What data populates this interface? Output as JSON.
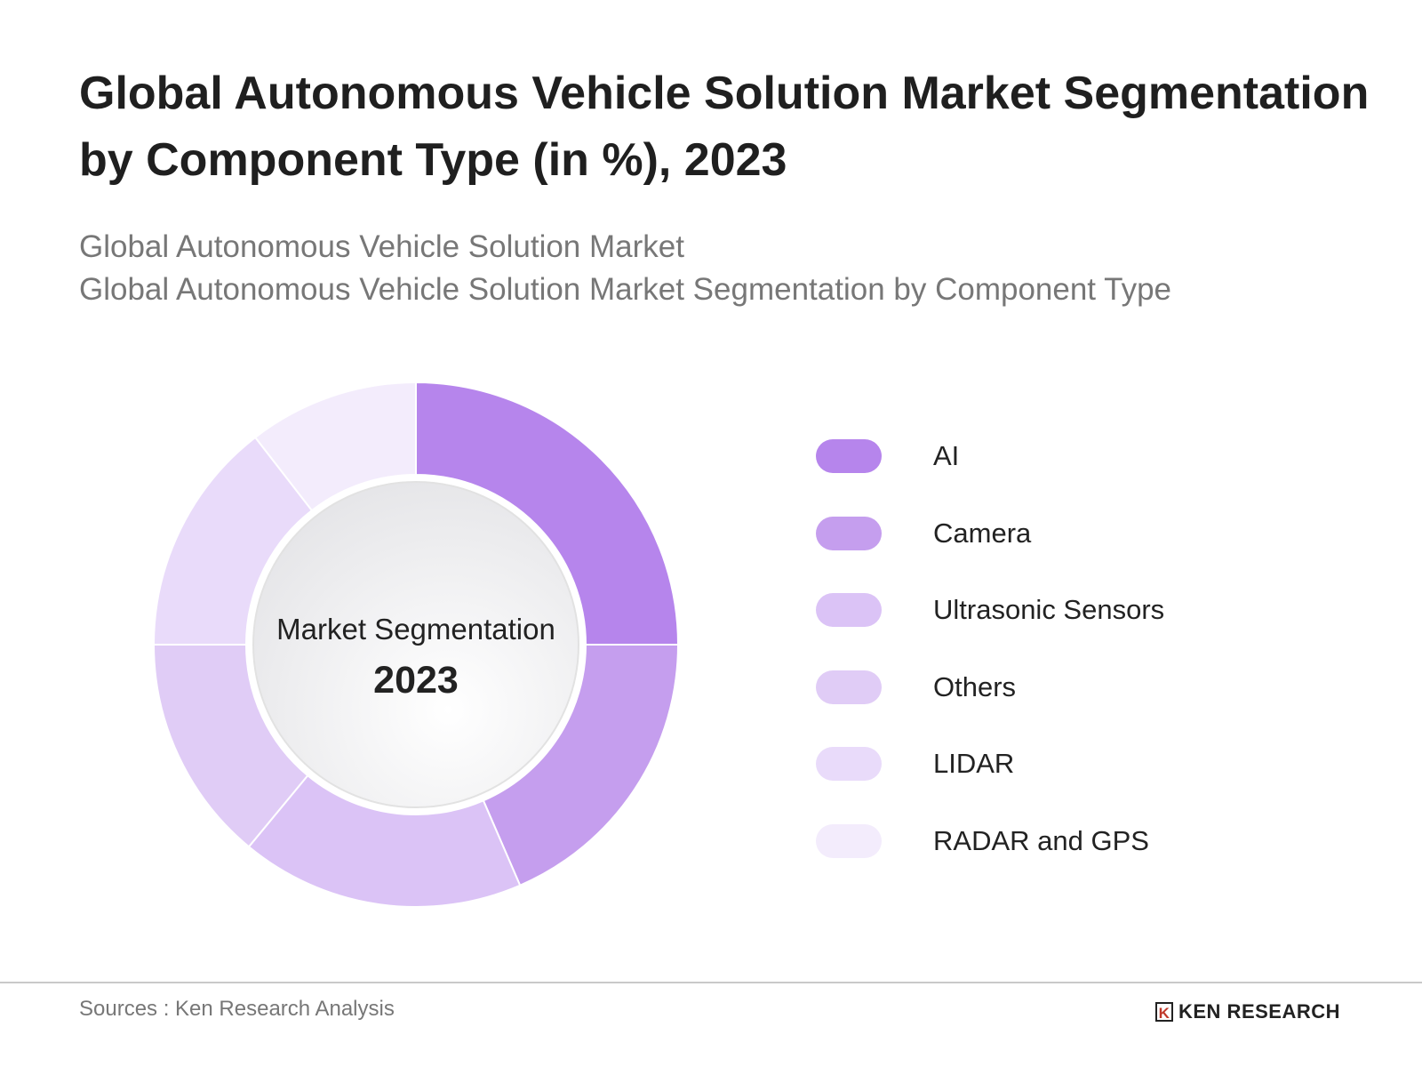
{
  "title": "Global Autonomous Vehicle Solution Market Segmentation by Component Type (in %), 2023",
  "subtitle_lines": [
    "Global Autonomous Vehicle Solution Market",
    "Global Autonomous Vehicle Solution Market Segmentation by Component Type"
  ],
  "center_label": "Market Segmentation",
  "center_year": "2023",
  "source": "Sources : Ken Research Analysis",
  "logo_text": "KEN RESEARCH",
  "chart_data": {
    "type": "pie",
    "style": "donut",
    "start": "12 o'clock, clockwise",
    "categories": [
      "AI",
      "Camera",
      "Ultrasonic Sensors",
      "Others",
      "LIDAR",
      "RADAR and GPS"
    ],
    "values": [
      25,
      18.5,
      17.5,
      14,
      14.5,
      10.5
    ],
    "colors": [
      "#b685ec",
      "#c59eee",
      "#dbc3f6",
      "#e0ccf6",
      "#e9dbfa",
      "#f3ecfc"
    ],
    "legend_placement": "right"
  }
}
